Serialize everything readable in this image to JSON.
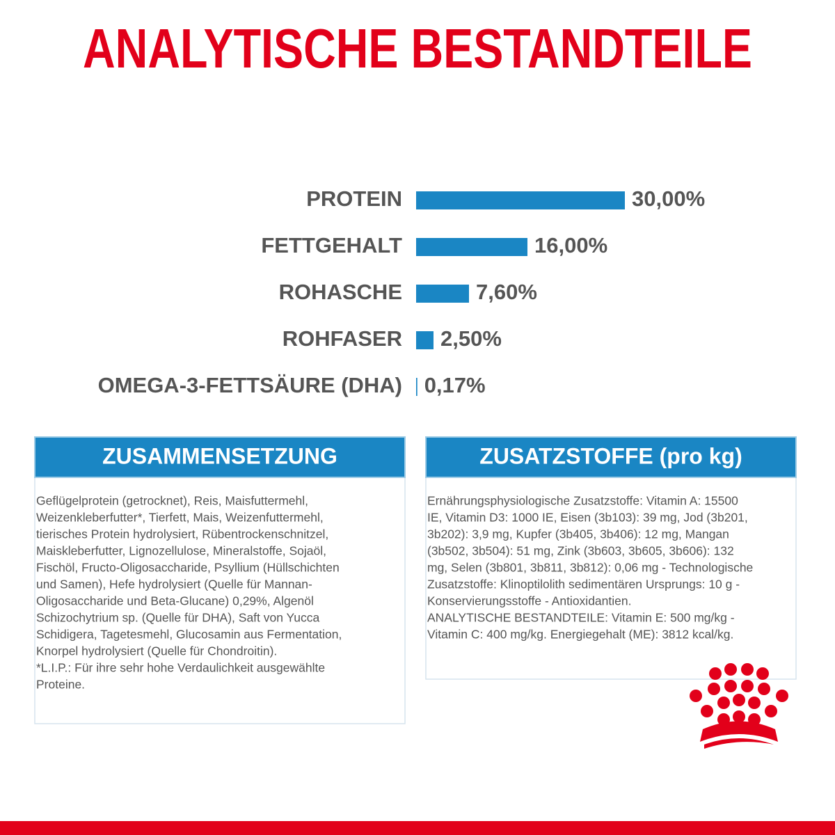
{
  "chart_data": {
    "type": "bar",
    "orientation": "horizontal",
    "title": "ANALYTISCHE BESTANDTEILE",
    "categories": [
      "PROTEIN",
      "FETTGEHALT",
      "ROHASCHE",
      "ROHFASER",
      "OMEGA-3-FETTSÄURE (DHA)"
    ],
    "values": [
      30,
      16,
      7.6,
      2.5,
      0.17
    ],
    "value_labels": [
      "30,00%",
      "16,00%",
      "7,60%",
      "2,50%",
      "0,17%"
    ],
    "color": "#1a86c4"
  },
  "panels": [
    {
      "title": "ZUSAMMENSETZUNG",
      "lines": [
        "Geflügelprotein (getrocknet), Reis, Maisfuttermehl,",
        "Weizenkleberfutter*, Tierfett, Mais, Weizenfuttermehl,",
        "tierisches Protein hydrolysiert, Rübentrockenschnitzel,",
        "Maiskleberfutter, Lignozellulose, Mineralstoffe, Sojaöl,",
        "Fischöl, Fructo-Oligosaccharide, Psyllium (Hüllschichten",
        "und Samen), Hefe hydrolysiert (Quelle für Mannan-",
        "Oligosaccharide und Beta-Glucane) 0,29%, Algenöl",
        "Schizochytrium sp. (Quelle für DHA), Saft von Yucca",
        "Schidigera, Tagetesmehl, Glucosamin aus Fermentation,",
        "Knorpel hydrolysiert (Quelle für Chondroitin).",
        "*L.I.P.: Für ihre sehr hohe Verdaulichkeit ausgewählte",
        "Proteine."
      ]
    },
    {
      "title": "ZUSATZSTOFFE (pro kg)",
      "lines": [
        "Ernährungsphysiologische Zusatzstoffe: Vitamin A: 15500",
        "IE, Vitamin D3: 1000 IE, Eisen (3b103): 39 mg, Jod (3b201,",
        "3b202): 3,9 mg, Kupfer (3b405, 3b406): 12 mg, Mangan",
        "(3b502, 3b504): 51 mg, Zink (3b603, 3b605, 3b606): 132",
        "mg, Selen (3b801, 3b811, 3b812): 0,06 mg - Technologische",
        "Zusatzstoffe: Klinoptilolith sedimentären Ursprungs: 10 g -",
        "Konservierungsstoffe - Antioxidantien.",
        "ANALYTISCHE BESTANDTEILE: Vitamin E: 500 mg/kg -",
        "Vitamin C: 400 mg/kg. Energiegehalt (ME): 3812 kcal/kg."
      ]
    }
  ]
}
